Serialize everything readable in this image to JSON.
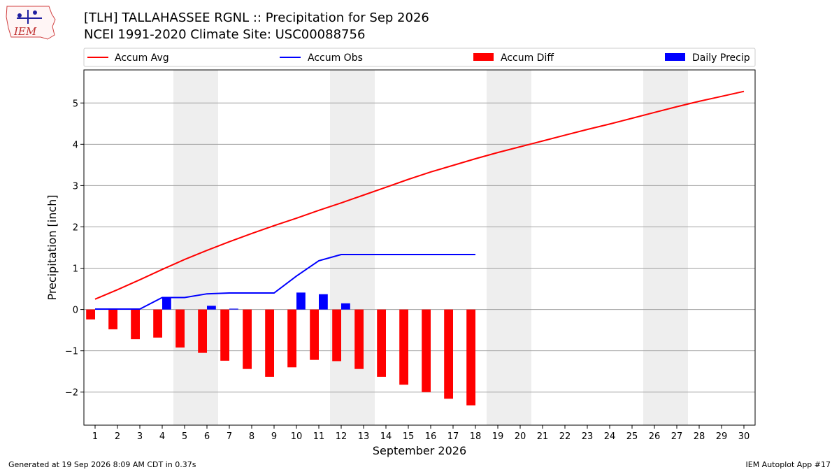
{
  "logo": {
    "text": "IEM"
  },
  "title": {
    "line1": "[TLH] TALLAHASSEE RGNL :: Precipitation for Sep 2026",
    "line2": "NCEI 1991-2020 Climate Site: USC00088756"
  },
  "footer": {
    "left": "Generated at 19 Sep 2026 8:09 AM CDT in 0.37s",
    "right": "IEM Autoplot App #17"
  },
  "colors": {
    "accum_avg": "#ff0000",
    "accum_obs": "#0000ff",
    "accum_diff": "#ff0000",
    "daily_precip": "#0000ff",
    "weekend_shade": "#eeeeee",
    "grid": "#a0a0a0"
  },
  "chart_data": {
    "type": "bar",
    "xlabel": "September 2026",
    "ylabel": "Precipitation [inch]",
    "xlim": [
      0.5,
      30.5
    ],
    "ylim": [
      -2.8,
      5.8
    ],
    "grid": true,
    "legend_placement": "top",
    "x_ticks": [
      1,
      2,
      3,
      4,
      5,
      6,
      7,
      8,
      9,
      10,
      11,
      12,
      13,
      14,
      15,
      16,
      17,
      18,
      19,
      20,
      21,
      22,
      23,
      24,
      25,
      26,
      27,
      28,
      29,
      30
    ],
    "y_ticks": [
      -2,
      -1,
      0,
      1,
      2,
      3,
      4,
      5
    ],
    "y_tick_labels": [
      "−2",
      "−1",
      "0",
      "1",
      "2",
      "3",
      "4",
      "5"
    ],
    "weekend_spans": [
      [
        4.5,
        6.5
      ],
      [
        11.5,
        13.5
      ],
      [
        18.5,
        20.5
      ],
      [
        25.5,
        27.5
      ]
    ],
    "series": [
      {
        "name": "Accum Avg",
        "kind": "line",
        "x": [
          1,
          2,
          3,
          4,
          5,
          6,
          7,
          8,
          9,
          10,
          11,
          12,
          13,
          14,
          15,
          16,
          17,
          18,
          19,
          20,
          21,
          22,
          23,
          24,
          25,
          26,
          27,
          28,
          29,
          30
        ],
        "values": [
          0.25,
          0.48,
          0.72,
          0.97,
          1.21,
          1.43,
          1.64,
          1.84,
          2.03,
          2.21,
          2.4,
          2.58,
          2.77,
          2.96,
          3.15,
          3.33,
          3.49,
          3.65,
          3.8,
          3.94,
          4.08,
          4.22,
          4.36,
          4.49,
          4.63,
          4.77,
          4.91,
          5.04,
          5.16,
          5.28
        ]
      },
      {
        "name": "Accum Obs",
        "kind": "line",
        "x": [
          1,
          2,
          3,
          4,
          5,
          6,
          7,
          8,
          9,
          10,
          11,
          12,
          13,
          14,
          15,
          16,
          17,
          18
        ],
        "values": [
          0.01,
          0.01,
          0.01,
          0.29,
          0.29,
          0.38,
          0.4,
          0.4,
          0.4,
          0.81,
          1.18,
          1.33,
          1.33,
          1.33,
          1.33,
          1.33,
          1.33,
          1.33
        ]
      },
      {
        "name": "Accum Diff",
        "kind": "bar",
        "x": [
          1,
          2,
          3,
          4,
          5,
          6,
          7,
          8,
          9,
          10,
          11,
          12,
          13,
          14,
          15,
          16,
          17,
          18
        ],
        "values": [
          -0.24,
          -0.48,
          -0.72,
          -0.68,
          -0.92,
          -1.05,
          -1.24,
          -1.44,
          -1.63,
          -1.4,
          -1.22,
          -1.25,
          -1.44,
          -1.63,
          -1.82,
          -2.0,
          -2.16,
          -2.32
        ]
      },
      {
        "name": "Daily Precip",
        "kind": "bar",
        "x": [
          4,
          6,
          7,
          10,
          11,
          12
        ],
        "values": [
          0.28,
          0.09,
          0.02,
          0.41,
          0.37,
          0.15
        ]
      }
    ]
  }
}
